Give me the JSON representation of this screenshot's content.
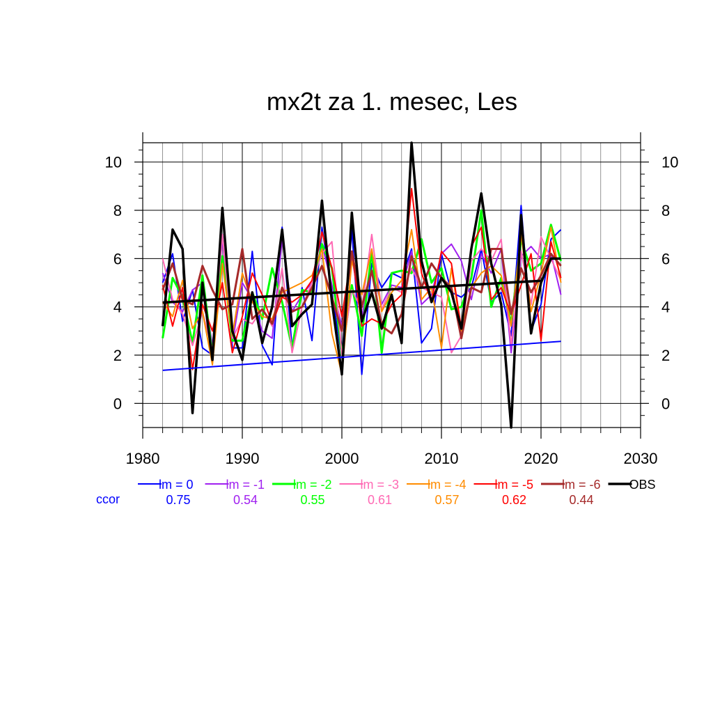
{
  "chart_data": {
    "type": "line",
    "title": "mx2t za 1. mesec, Les",
    "xlim": [
      1980,
      2030
    ],
    "ylim": [
      -1,
      10.8
    ],
    "x_ticks": [
      1980,
      1990,
      2000,
      2010,
      2020,
      2030
    ],
    "y_ticks": [
      0,
      2,
      4,
      6,
      8,
      10
    ],
    "grid": true,
    "x": [
      1982,
      1983,
      1984,
      1985,
      1986,
      1987,
      1988,
      1989,
      1990,
      1991,
      1992,
      1993,
      1994,
      1995,
      1996,
      1997,
      1998,
      1999,
      2000,
      2001,
      2002,
      2003,
      2004,
      2005,
      2006,
      2007,
      2008,
      2009,
      2010,
      2011,
      2012,
      2013,
      2014,
      2015,
      2016,
      2017,
      2018,
      2019,
      2020,
      2021,
      2022
    ],
    "series": [
      {
        "name": "lm = 0",
        "color": "#0000ff",
        "width": 2,
        "values": [
          5.0,
          6.2,
          3.4,
          4.7,
          2.3,
          2.0,
          7.0,
          2.3,
          2.3,
          6.3,
          2.4,
          1.6,
          7.3,
          2.3,
          4.8,
          2.6,
          7.3,
          4.6,
          1.9,
          7.2,
          1.2,
          5.8,
          4.8,
          5.4,
          5.2,
          6.4,
          2.5,
          3.1,
          6.2,
          4.6,
          4.4,
          4.8,
          6.4,
          4.2,
          4.6,
          2.8,
          8.2,
          3.0,
          4.1,
          6.8,
          7.2
        ]
      },
      {
        "name": "lm = -1",
        "color": "#a020f0",
        "width": 2,
        "values": [
          5.4,
          4.2,
          3.8,
          4.7,
          5.0,
          2.4,
          6.8,
          2.5,
          5.0,
          4.3,
          3.0,
          2.7,
          6.8,
          3.8,
          4.5,
          5.0,
          6.6,
          4.9,
          3.2,
          6.1,
          3.6,
          5.5,
          4.1,
          4.9,
          4.8,
          6.3,
          4.1,
          4.5,
          6.2,
          6.6,
          5.9,
          4.3,
          6.2,
          5.4,
          6.4,
          2.1,
          6.1,
          6.5,
          6.0,
          6.2,
          4.5
        ]
      },
      {
        "name": "lm = -2",
        "color": "#00ff00",
        "width": 3,
        "values": [
          2.7,
          5.2,
          4.4,
          2.5,
          5.3,
          2.0,
          6.1,
          2.6,
          2.6,
          4.6,
          3.5,
          5.6,
          4.2,
          2.3,
          4.7,
          4.6,
          6.6,
          5.6,
          2.0,
          4.9,
          2.8,
          6.3,
          2.1,
          5.4,
          5.5,
          5.4,
          6.8,
          5.0,
          5.6,
          3.9,
          4.0,
          5.2,
          8.0,
          4.0,
          5.2,
          3.3,
          6.8,
          5.5,
          5.8,
          7.4,
          5.9
        ]
      },
      {
        "name": "lm = -3",
        "color": "#ff69b4",
        "width": 2,
        "values": [
          6.0,
          4.3,
          3.7,
          2.4,
          3.8,
          2.2,
          7.0,
          2.7,
          3.5,
          3.3,
          3.9,
          3.2,
          5.6,
          2.1,
          4.0,
          5.0,
          6.2,
          6.7,
          2.0,
          4.7,
          3.9,
          7.0,
          3.9,
          4.8,
          4.6,
          5.6,
          4.8,
          4.6,
          4.4,
          2.1,
          2.8,
          5.9,
          6.4,
          5.9,
          6.8,
          2.4,
          6.3,
          4.1,
          6.9,
          6.0,
          5.1
        ]
      },
      {
        "name": "lm = -4",
        "color": "#ff8c00",
        "width": 2,
        "values": [
          4.2,
          3.6,
          5.1,
          3.1,
          3.8,
          1.6,
          5.8,
          2.8,
          5.4,
          4.2,
          3.6,
          3.5,
          4.6,
          4.8,
          5.0,
          5.3,
          6.4,
          2.9,
          1.2,
          5.9,
          4.5,
          6.4,
          3.8,
          4.6,
          5.1,
          7.2,
          4.3,
          4.8,
          2.3,
          5.6,
          3.0,
          4.8,
          5.4,
          5.7,
          5.3,
          3.2,
          7.0,
          3.8,
          5.4,
          7.3,
          5.0
        ]
      },
      {
        "name": "lm = -5",
        "color": "#ff0000",
        "width": 2,
        "values": [
          4.9,
          3.2,
          4.8,
          1.4,
          4.1,
          3.0,
          5.0,
          2.1,
          3.6,
          5.4,
          4.5,
          3.3,
          4.4,
          4.2,
          4.5,
          5.1,
          7.1,
          5.6,
          3.6,
          6.3,
          3.2,
          3.5,
          3.3,
          4.1,
          4.5,
          8.9,
          5.4,
          4.2,
          6.3,
          5.8,
          3.1,
          6.5,
          7.3,
          4.3,
          4.8,
          3.7,
          4.9,
          6.2,
          2.6,
          6.7,
          5.2
        ]
      },
      {
        "name": "lm = -6",
        "color": "#a52a2a",
        "width": 3,
        "values": [
          4.7,
          5.8,
          4.3,
          4.1,
          5.7,
          4.7,
          3.9,
          4.1,
          6.4,
          3.5,
          3.9,
          3.3,
          4.8,
          3.8,
          4.0,
          4.8,
          5.7,
          4.4,
          3.0,
          6.3,
          4.0,
          5.5,
          3.2,
          2.9,
          3.7,
          6.1,
          4.8,
          5.8,
          5.2,
          4.8,
          2.7,
          4.8,
          4.6,
          6.4,
          6.4,
          3.7,
          5.6,
          4.6,
          5.3,
          6.2,
          5.7
        ]
      },
      {
        "name": "OBS",
        "color": "#000000",
        "width": 3.5,
        "values": [
          3.2,
          7.2,
          6.4,
          -0.4,
          5.0,
          1.8,
          8.1,
          3.0,
          1.8,
          4.6,
          2.5,
          4.0,
          7.2,
          3.2,
          3.7,
          4.1,
          8.4,
          4.2,
          1.2,
          7.9,
          3.4,
          4.6,
          3.1,
          4.5,
          2.5,
          10.8,
          5.9,
          4.2,
          5.2,
          4.6,
          3.1,
          6.4,
          8.7,
          5.8,
          4.1,
          -1.0,
          7.8,
          2.9,
          5.0,
          6.0,
          6.0
        ]
      }
    ],
    "trend_lines": [
      {
        "label": "obs-trend",
        "color": "#000000",
        "width": 3.5,
        "x": [
          1982,
          2020
        ],
        "y": [
          4.18,
          5.08
        ]
      },
      {
        "label": "lm0-trend",
        "color": "#0000ff",
        "width": 2,
        "x": [
          1982,
          2022
        ],
        "y": [
          1.37,
          2.57
        ]
      }
    ],
    "legend_position": "below plot",
    "ccor_label": "ccor",
    "ccor_color": "#0000ff",
    "ccor_values": [
      "0.75",
      "0.54",
      "0.55",
      "0.61",
      "0.57",
      "0.62",
      "0.44"
    ]
  }
}
